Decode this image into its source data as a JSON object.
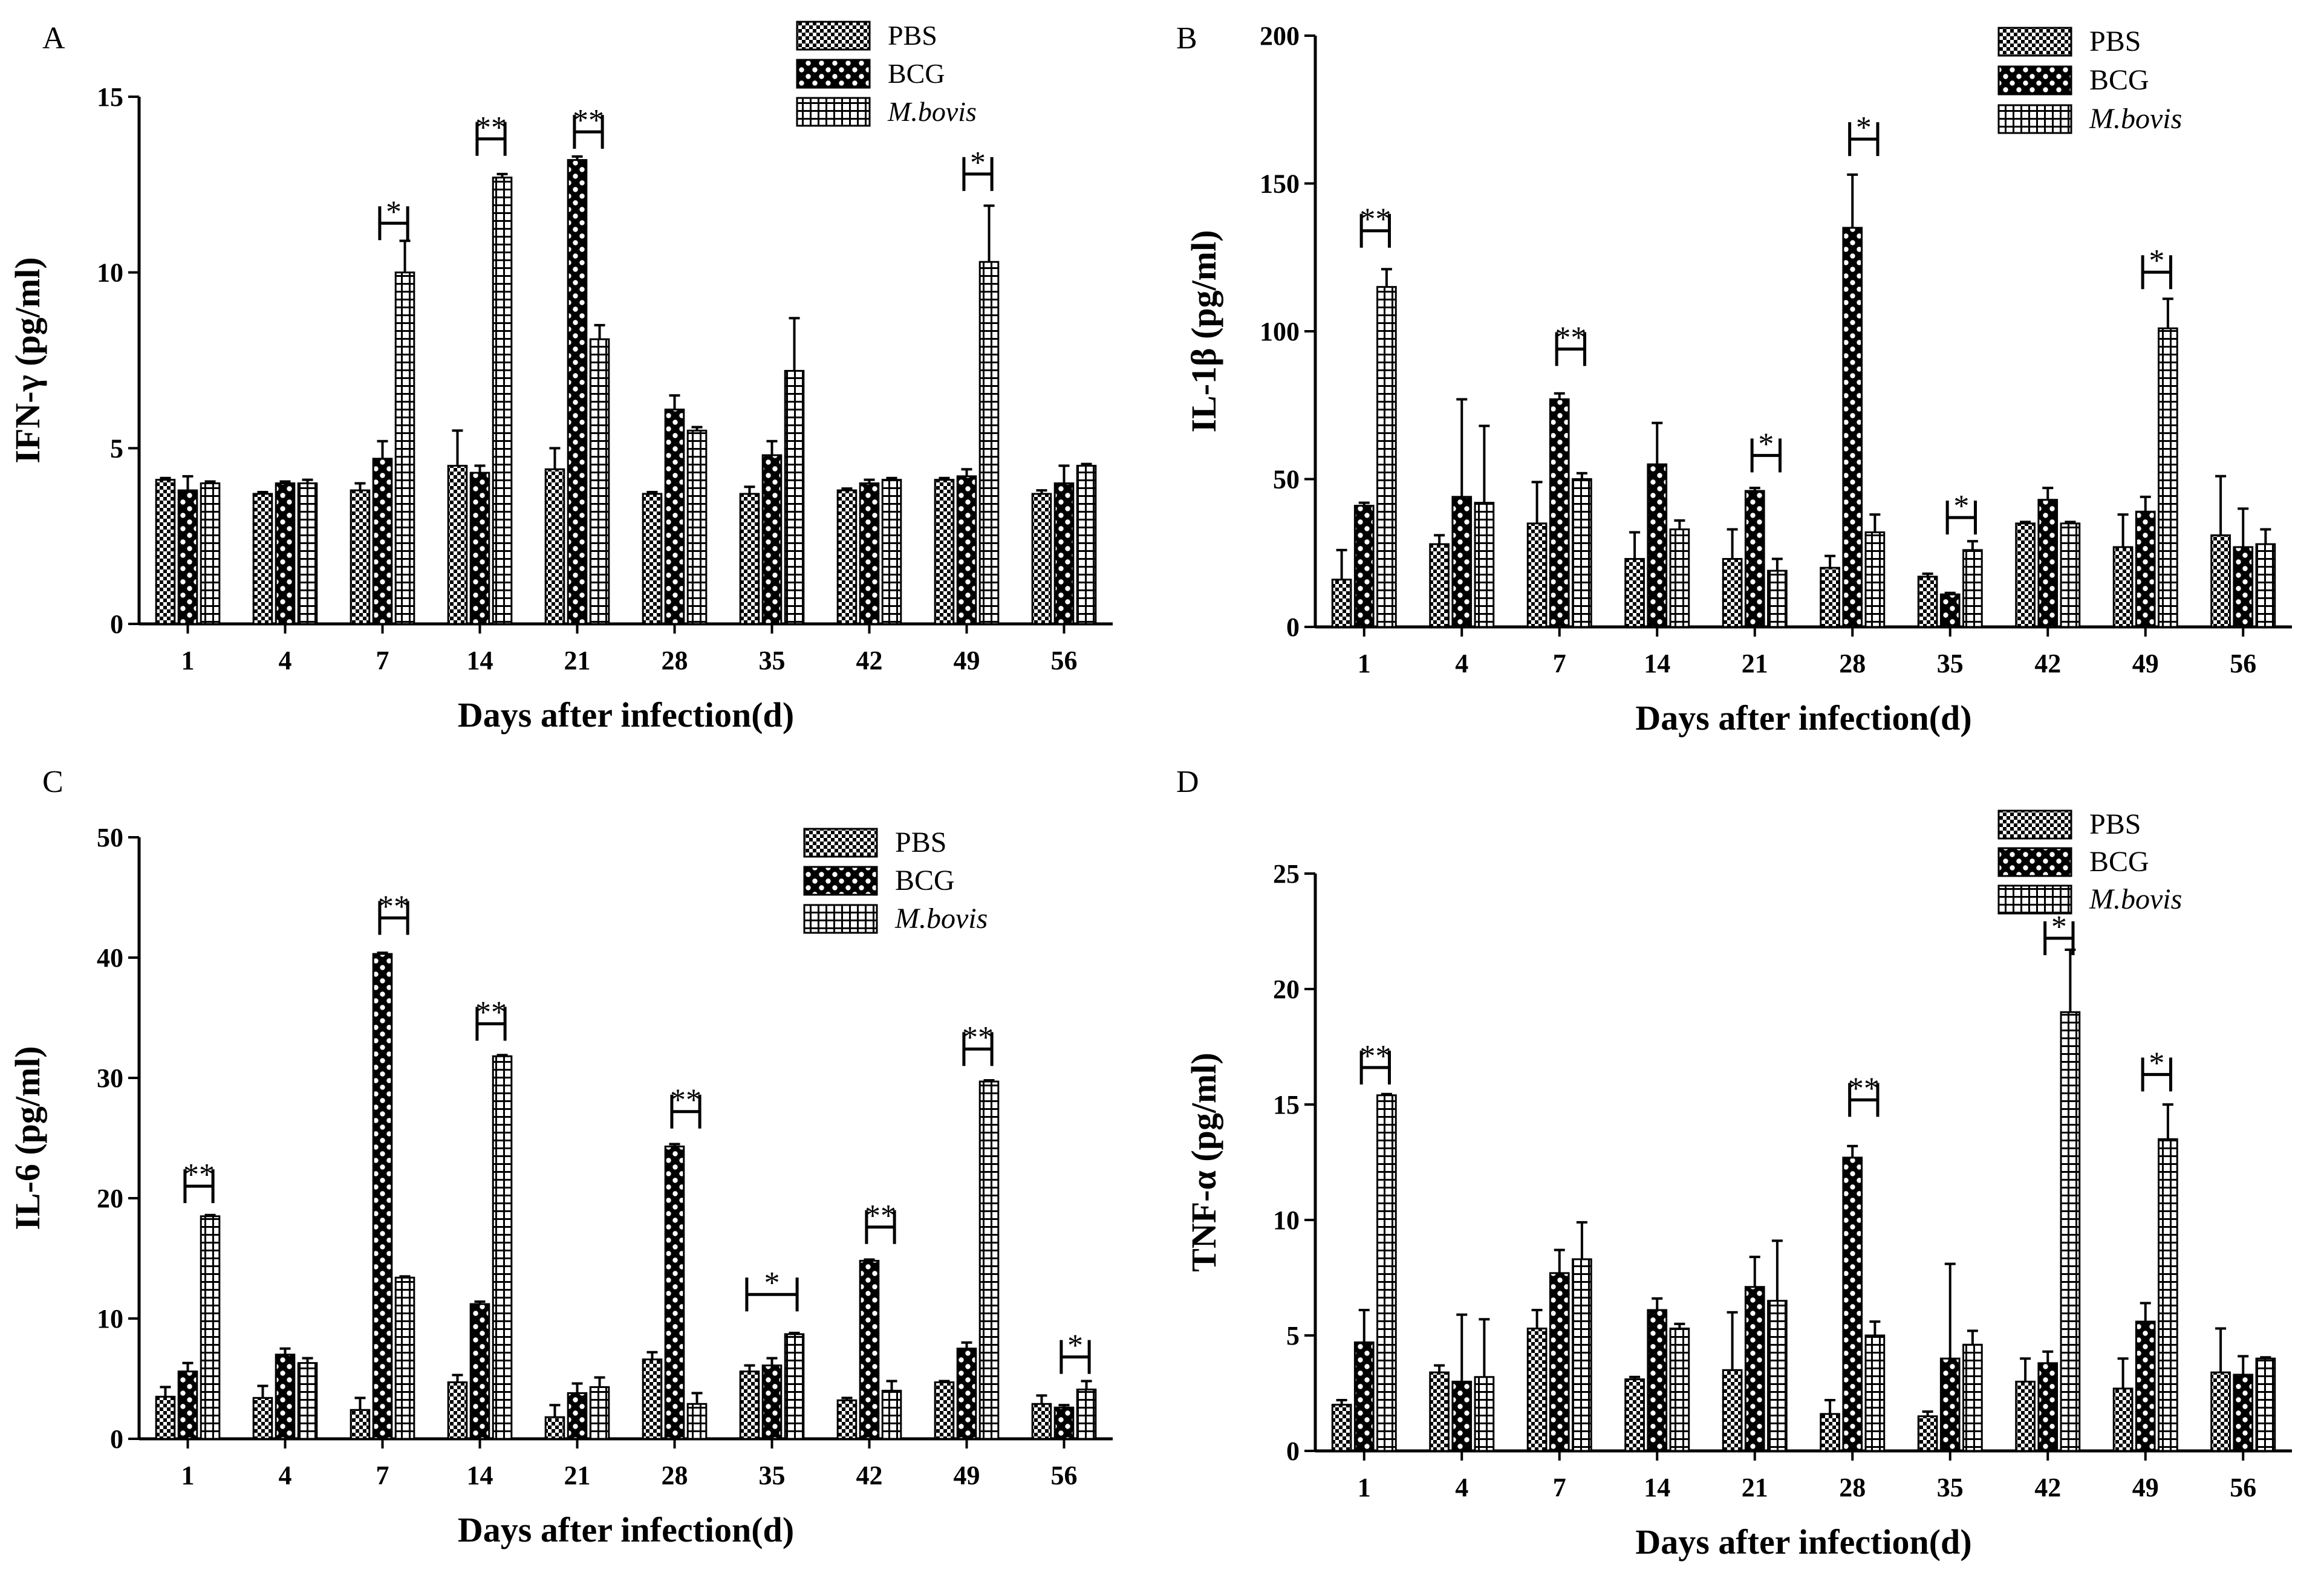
{
  "figure": {
    "colors": {
      "ink": "#000000",
      "background": "#ffffff"
    }
  },
  "chart_data": [
    {
      "panel_label": "A",
      "type": "bar",
      "xlabel": "Days after infection(d)",
      "ylabel": "IFN-γ (pg/ml)",
      "ylim": [
        0,
        15
      ],
      "yticks": [
        0,
        5,
        10,
        15
      ],
      "categories": [
        "1",
        "4",
        "7",
        "14",
        "21",
        "28",
        "35",
        "42",
        "49",
        "56"
      ],
      "series": [
        {
          "name": "PBS",
          "pattern": "fine-checker",
          "values": [
            4.1,
            3.7,
            3.8,
            4.5,
            4.4,
            3.7,
            3.7,
            3.8,
            4.1,
            3.7
          ],
          "errors": [
            0.05,
            0.05,
            0.2,
            1.0,
            0.6,
            0.05,
            0.2,
            0.05,
            0.05,
            0.1
          ]
        },
        {
          "name": "BCG",
          "pattern": "coarse-checker",
          "values": [
            3.8,
            4.0,
            4.7,
            4.3,
            13.2,
            6.1,
            4.8,
            4.0,
            4.2,
            4.0
          ],
          "errors": [
            0.4,
            0.05,
            0.5,
            0.2,
            0.1,
            0.4,
            0.4,
            0.1,
            0.2,
            0.5
          ]
        },
        {
          "name": "M.bovis",
          "pattern": "grid",
          "values": [
            4.0,
            4.0,
            10.0,
            12.7,
            8.1,
            5.5,
            7.2,
            4.1,
            10.3,
            4.5
          ],
          "errors": [
            0.05,
            0.1,
            0.9,
            0.1,
            0.4,
            0.1,
            1.5,
            0.05,
            1.6,
            0.05
          ]
        }
      ],
      "annotations": [
        {
          "category": "7",
          "from": "BCG",
          "to": "M.bovis",
          "y": 11.4,
          "text": "*"
        },
        {
          "category": "14",
          "from": "BCG",
          "to": "M.bovis",
          "y": 13.8,
          "text": "**"
        },
        {
          "category": "21",
          "from": "BCG",
          "to": "M.bovis",
          "y": 14.0,
          "text": "**"
        },
        {
          "category": "49",
          "from": "BCG",
          "to": "M.bovis",
          "y": 12.8,
          "text": "*"
        }
      ],
      "legend": {
        "placement": "top-right",
        "entries": [
          "PBS",
          "BCG",
          "M.bovis"
        ]
      }
    },
    {
      "panel_label": "B",
      "type": "bar",
      "xlabel": "Days after infection(d)",
      "ylabel": "IL-1β (pg/ml)",
      "ylim": [
        0,
        200
      ],
      "yticks": [
        0,
        50,
        100,
        150,
        200
      ],
      "categories": [
        "1",
        "4",
        "7",
        "14",
        "21",
        "28",
        "35",
        "42",
        "49",
        "56"
      ],
      "series": [
        {
          "name": "PBS",
          "pattern": "fine-checker",
          "values": [
            16,
            28,
            35,
            23,
            23,
            20,
            17,
            35,
            27,
            31
          ],
          "errors": [
            10,
            3,
            14,
            9,
            10,
            4,
            1,
            0.5,
            11,
            20
          ]
        },
        {
          "name": "BCG",
          "pattern": "coarse-checker",
          "values": [
            41,
            44,
            77,
            55,
            46,
            135,
            11,
            43,
            39,
            27
          ],
          "errors": [
            1,
            33,
            2,
            14,
            1,
            18,
            0.5,
            4,
            5,
            13
          ]
        },
        {
          "name": "M.bovis",
          "pattern": "grid",
          "values": [
            115,
            42,
            50,
            33,
            19,
            32,
            26,
            35,
            101,
            28
          ],
          "errors": [
            6,
            26,
            2,
            3,
            4,
            6,
            3,
            0.5,
            10,
            5
          ]
        }
      ],
      "annotations": [
        {
          "category": "1",
          "from": "BCG",
          "to": "M.bovis",
          "y": 134,
          "text": "**"
        },
        {
          "category": "7",
          "from": "BCG",
          "to": "M.bovis",
          "y": 94,
          "text": "**"
        },
        {
          "category": "21",
          "from": "BCG",
          "to": "M.bovis",
          "y": 58,
          "text": "*"
        },
        {
          "category": "28",
          "from": "BCG",
          "to": "M.bovis",
          "y": 165,
          "text": "*"
        },
        {
          "category": "35",
          "from": "BCG",
          "to": "M.bovis",
          "y": 37,
          "text": "*"
        },
        {
          "category": "49",
          "from": "BCG",
          "to": "M.bovis",
          "y": 120,
          "text": "*"
        }
      ],
      "legend": {
        "placement": "top-right",
        "entries": [
          "PBS",
          "BCG",
          "M.bovis"
        ]
      }
    },
    {
      "panel_label": "C",
      "type": "bar",
      "xlabel": "Days after infection(d)",
      "ylabel": "IL-6 (pg/ml)",
      "ylim": [
        0,
        50
      ],
      "yticks": [
        0,
        10,
        20,
        30,
        40,
        50
      ],
      "categories": [
        "1",
        "4",
        "7",
        "14",
        "21",
        "28",
        "35",
        "42",
        "49",
        "56"
      ],
      "series": [
        {
          "name": "PBS",
          "pattern": "fine-checker",
          "values": [
            3.5,
            3.4,
            2.4,
            4.7,
            1.8,
            6.6,
            5.6,
            3.2,
            4.7,
            2.9
          ],
          "errors": [
            0.8,
            1.0,
            1.0,
            0.6,
            1.0,
            0.6,
            0.5,
            0.2,
            0.1,
            0.7
          ]
        },
        {
          "name": "BCG",
          "pattern": "coarse-checker",
          "values": [
            5.6,
            7.0,
            40.3,
            11.2,
            3.8,
            24.3,
            6.1,
            14.8,
            7.5,
            2.6
          ],
          "errors": [
            0.7,
            0.5,
            0.1,
            0.2,
            0.8,
            0.2,
            0.6,
            0.1,
            0.5,
            0.2
          ]
        },
        {
          "name": "M.bovis",
          "pattern": "grid",
          "values": [
            18.5,
            6.3,
            13.4,
            31.8,
            4.3,
            2.9,
            8.7,
            4.0,
            29.7,
            4.1
          ],
          "errors": [
            0.1,
            0.4,
            0.1,
            0.1,
            0.8,
            0.9,
            0.1,
            0.8,
            0.1,
            0.7
          ]
        }
      ],
      "annotations": [
        {
          "category": "1",
          "from": "BCG",
          "to": "M.bovis",
          "y": 21.0,
          "text": "**"
        },
        {
          "category": "7",
          "from": "BCG",
          "to": "M.bovis",
          "y": 43.3,
          "text": "**"
        },
        {
          "category": "14",
          "from": "BCG",
          "to": "M.bovis",
          "y": 34.5,
          "text": "**"
        },
        {
          "category": "28",
          "from": "BCG",
          "to": "M.bovis",
          "y": 27.2,
          "text": "**"
        },
        {
          "category": "35",
          "from": "PBS",
          "to": "M.bovis",
          "y": 12.0,
          "text": "*"
        },
        {
          "category": "42",
          "from": "BCG",
          "to": "M.bovis",
          "y": 17.6,
          "text": "**"
        },
        {
          "category": "49",
          "from": "BCG",
          "to": "M.bovis",
          "y": 32.4,
          "text": "**"
        },
        {
          "category": "56",
          "from": "BCG",
          "to": "M.bovis",
          "y": 6.8,
          "text": "*"
        }
      ],
      "legend": {
        "placement": "top-right",
        "entries": [
          "PBS",
          "BCG",
          "M.bovis"
        ]
      }
    },
    {
      "panel_label": "D",
      "type": "bar",
      "xlabel": "Days after infection(d)",
      "ylabel": "TNF-α (pg/ml)",
      "ylim": [
        0,
        25
      ],
      "yticks": [
        0,
        5,
        10,
        15,
        20,
        25
      ],
      "categories": [
        "1",
        "4",
        "7",
        "14",
        "21",
        "28",
        "35",
        "42",
        "49",
        "56"
      ],
      "series": [
        {
          "name": "PBS",
          "pattern": "fine-checker",
          "values": [
            2.0,
            3.4,
            5.3,
            3.1,
            3.5,
            1.6,
            1.5,
            3.0,
            2.7,
            3.4
          ],
          "errors": [
            0.2,
            0.3,
            0.8,
            0.1,
            2.5,
            0.6,
            0.2,
            1.0,
            1.3,
            1.9
          ]
        },
        {
          "name": "BCG",
          "pattern": "coarse-checker",
          "values": [
            4.7,
            3.0,
            7.7,
            6.1,
            7.1,
            12.7,
            4.0,
            3.8,
            5.6,
            3.3
          ],
          "errors": [
            1.4,
            2.9,
            1.0,
            0.5,
            1.3,
            0.5,
            4.1,
            0.5,
            0.8,
            0.8
          ]
        },
        {
          "name": "M.bovis",
          "pattern": "grid",
          "values": [
            15.4,
            3.2,
            8.3,
            5.3,
            6.5,
            5.0,
            4.6,
            19.0,
            13.5,
            4.0
          ],
          "errors": [
            0.05,
            2.5,
            1.6,
            0.2,
            2.6,
            0.6,
            0.6,
            2.7,
            1.5,
            0.05
          ]
        }
      ],
      "annotations": [
        {
          "category": "1",
          "from": "BCG",
          "to": "M.bovis",
          "y": 16.6,
          "text": "**"
        },
        {
          "category": "28",
          "from": "BCG",
          "to": "M.bovis",
          "y": 15.2,
          "text": "**"
        },
        {
          "category": "42",
          "from": "BCG",
          "to": "M.bovis",
          "y": 22.2,
          "text": "*"
        },
        {
          "category": "49",
          "from": "BCG",
          "to": "M.bovis",
          "y": 16.3,
          "text": "*"
        }
      ],
      "legend": {
        "placement": "top-right",
        "entries": [
          "PBS",
          "BCG",
          "M.bovis"
        ]
      }
    }
  ]
}
